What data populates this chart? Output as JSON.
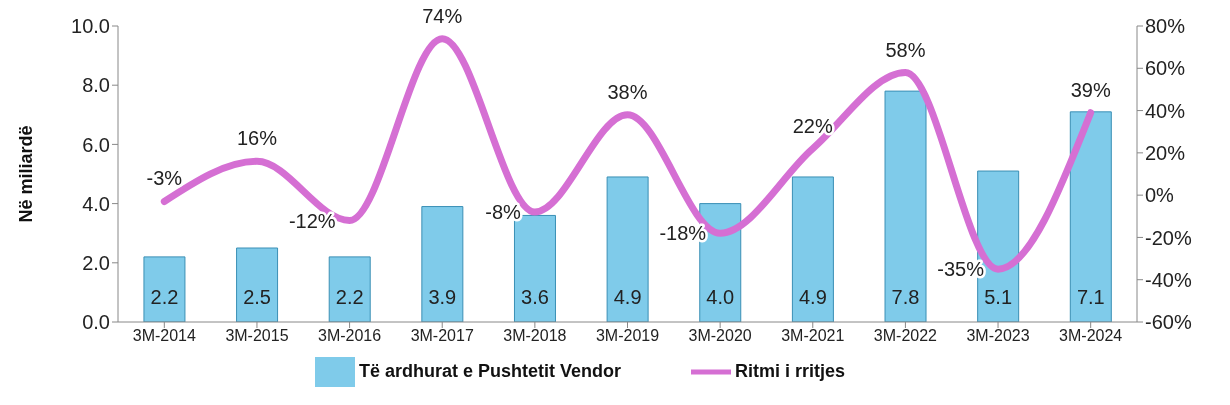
{
  "chart_data": {
    "type": "bar",
    "ylabel": "Në miliardë",
    "categories": [
      "3M-2014",
      "3M-2015",
      "3M-2016",
      "3M-2017",
      "3M-2018",
      "3M-2019",
      "3M-2020",
      "3M-2021",
      "3M-2022",
      "3M-2023",
      "3M-2024"
    ],
    "series": [
      {
        "name": "Të ardhurat e Pushtetit Vendor",
        "color": "#7fcbea",
        "values": [
          2.2,
          2.5,
          2.2,
          3.9,
          3.6,
          4.9,
          4.0,
          4.9,
          7.8,
          5.1,
          7.1
        ],
        "value_labels": [
          "2.2",
          "2.5",
          "2.2",
          "3.9",
          "3.6",
          "4.9",
          "4.0",
          "4.9",
          "7.8",
          "5.1",
          "7.1"
        ]
      },
      {
        "name": "Ritmi i rritjes",
        "type": "line",
        "axis": "y2",
        "color": "#d56fd3",
        "values": [
          -3,
          16,
          -12,
          74,
          -8,
          38,
          -18,
          22,
          58,
          -35,
          39
        ],
        "value_labels": [
          "-3%",
          "16%",
          "-12%",
          "74%",
          "-8%",
          "38%",
          "-18%",
          "22%",
          "58%",
          "-35%",
          "39%"
        ]
      }
    ],
    "ylim": [
      0,
      10
    ],
    "yticks": [
      {
        "value": 0,
        "label": "0.0"
      },
      {
        "value": 2,
        "label": "2.0"
      },
      {
        "value": 4,
        "label": "4.0"
      },
      {
        "value": 6,
        "label": "6.0"
      },
      {
        "value": 8,
        "label": "8.0"
      },
      {
        "value": 10,
        "label": "10.0"
      }
    ],
    "y2lim": [
      -60,
      80
    ],
    "y2ticks": [
      {
        "value": -60,
        "label": "-60%"
      },
      {
        "value": -40,
        "label": "-40%"
      },
      {
        "value": -20,
        "label": "-20%"
      },
      {
        "value": 0,
        "label": "0%"
      },
      {
        "value": 20,
        "label": "20%"
      },
      {
        "value": 40,
        "label": "40%"
      },
      {
        "value": 60,
        "label": "60%"
      },
      {
        "value": 80,
        "label": "80%"
      }
    ],
    "grid": false,
    "legend": "bottom",
    "marker": "none",
    "line_style": "solid"
  }
}
